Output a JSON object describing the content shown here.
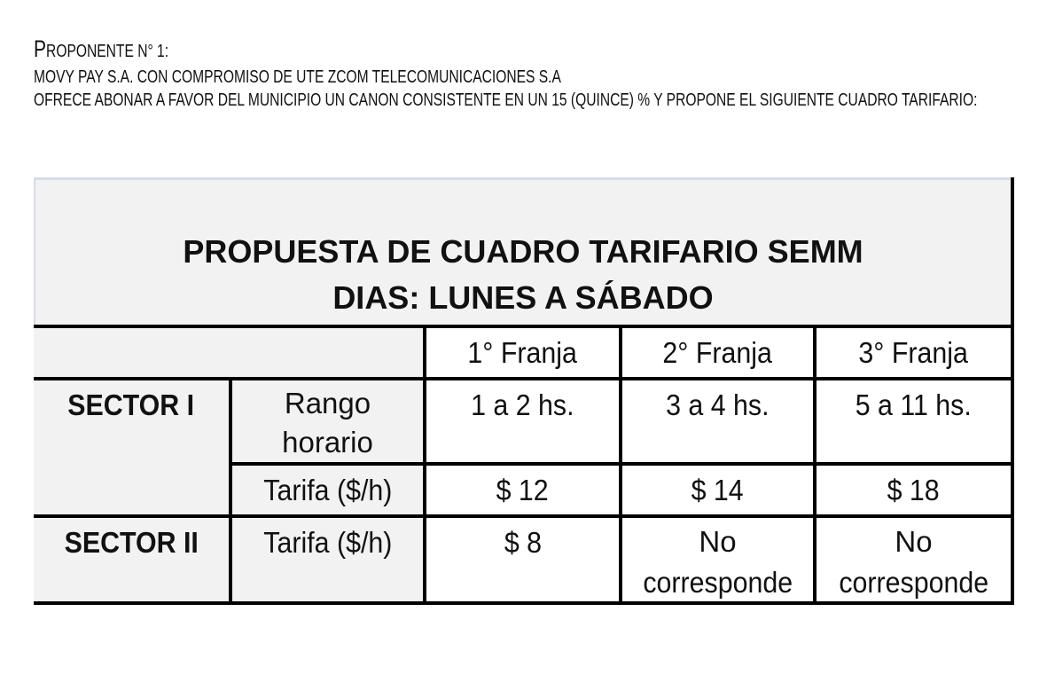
{
  "header": {
    "proponente_first": "P",
    "proponente_rest": "ROPONENTE N° 1:",
    "line1": "MOVY PAY S.A.  CON COMPROMISO DE UTE ZCOM TELECOMUNICACIONES S.A",
    "line2": "OFRECE ABONAR A FAVOR DEL MUNICIPIO UN CANON CONSISTENTE EN UN 15 (QUINCE) % Y PROPONE EL SIGUIENTE CUADRO TARIFARIO:"
  },
  "table": {
    "title": "PROPUESTA DE CUADRO TARIFARIO SEMM",
    "subtitle": "DIAS: LUNES A SÁBADO",
    "columns": [
      "1° Franja",
      "2° Franja",
      "3° Franja"
    ],
    "sector1": {
      "label": "SECTOR I",
      "rango_label_1": "Rango",
      "rango_label_2": "horario",
      "rango": [
        "1 a 2 hs.",
        "3 a 4 hs.",
        "5 a 11 hs."
      ],
      "tarifa_label": "Tarifa ($/h)",
      "tarifa": [
        "$ 12",
        "$ 14",
        "$ 18"
      ]
    },
    "sector2": {
      "label": "SECTOR II",
      "tarifa_label": "Tarifa ($/h)",
      "tarifa": [
        "$ 8"
      ],
      "no_corresponde_1": "No",
      "no_corresponde_2": "corresponde"
    }
  }
}
